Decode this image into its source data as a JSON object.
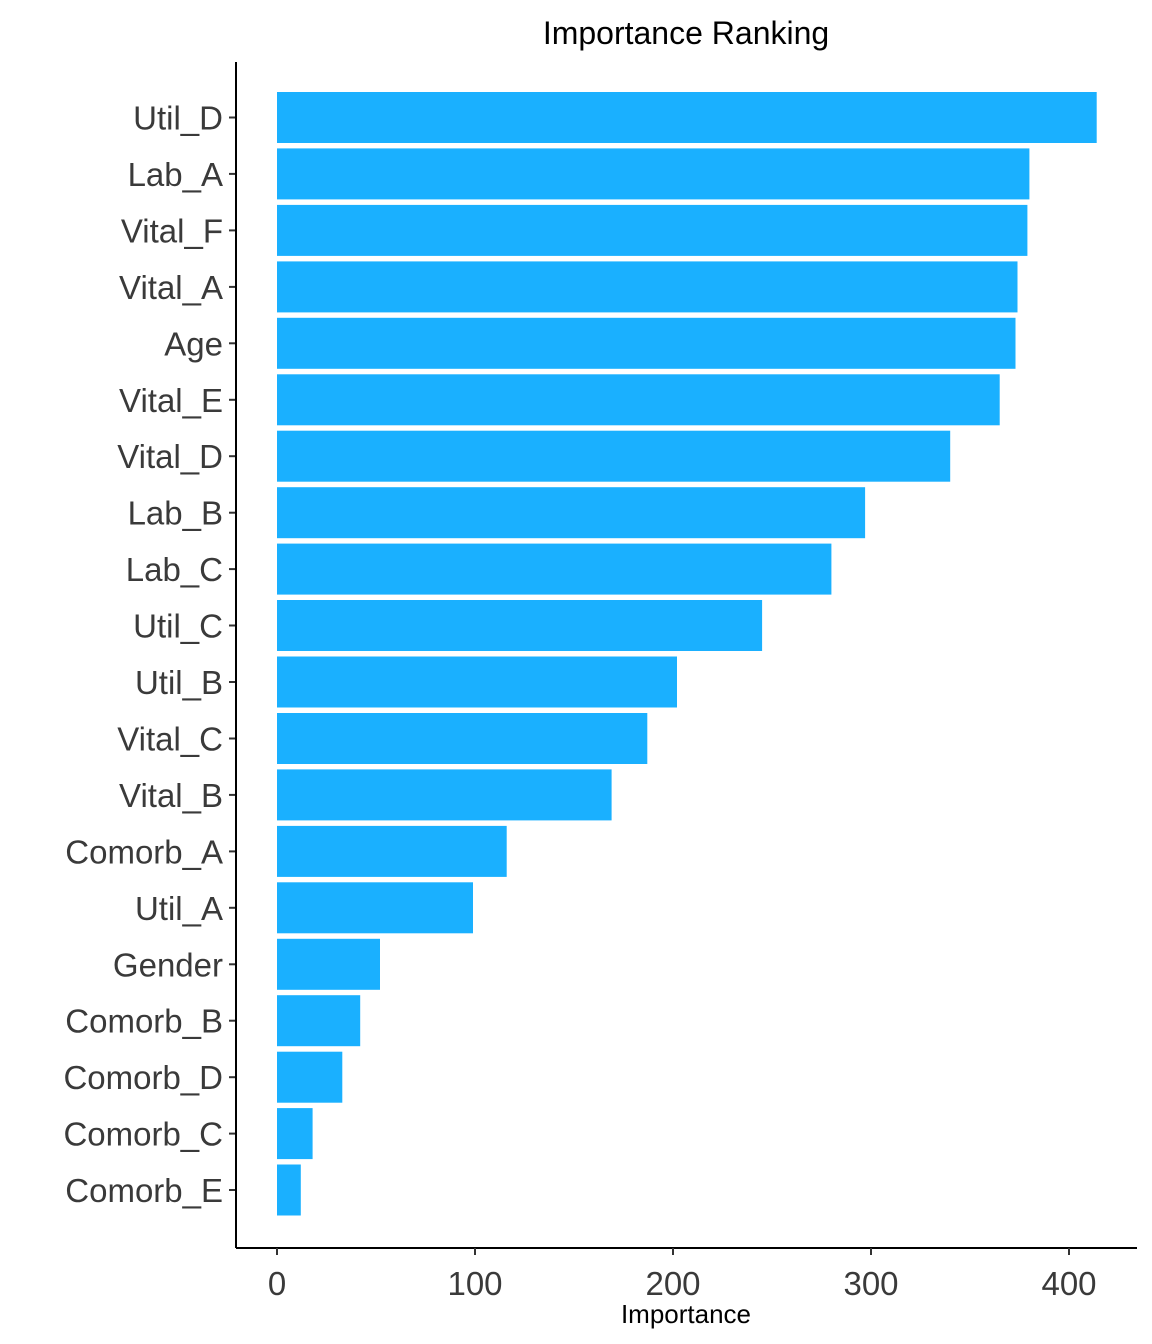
{
  "chart_data": {
    "type": "bar",
    "orientation": "horizontal",
    "title": "Importance Ranking",
    "xlabel": "Importance",
    "ylabel": "",
    "xlim": [
      -20,
      430
    ],
    "x_ticks": [
      0,
      100,
      200,
      300,
      400
    ],
    "bar_color": "#1AB0FF",
    "grid": false,
    "legend": "none",
    "categories": [
      "Util_D",
      "Lab_A",
      "Vital_F",
      "Vital_A",
      "Age",
      "Vital_E",
      "Vital_D",
      "Lab_B",
      "Lab_C",
      "Util_C",
      "Util_B",
      "Vital_C",
      "Vital_B",
      "Comorb_A",
      "Util_A",
      "Gender",
      "Comorb_B",
      "Comorb_D",
      "Comorb_C",
      "Comorb_E"
    ],
    "values": [
      414,
      380,
      379,
      374,
      373,
      365,
      340,
      297,
      280,
      245,
      202,
      187,
      169,
      116,
      99,
      52,
      42,
      33,
      18,
      12
    ]
  }
}
